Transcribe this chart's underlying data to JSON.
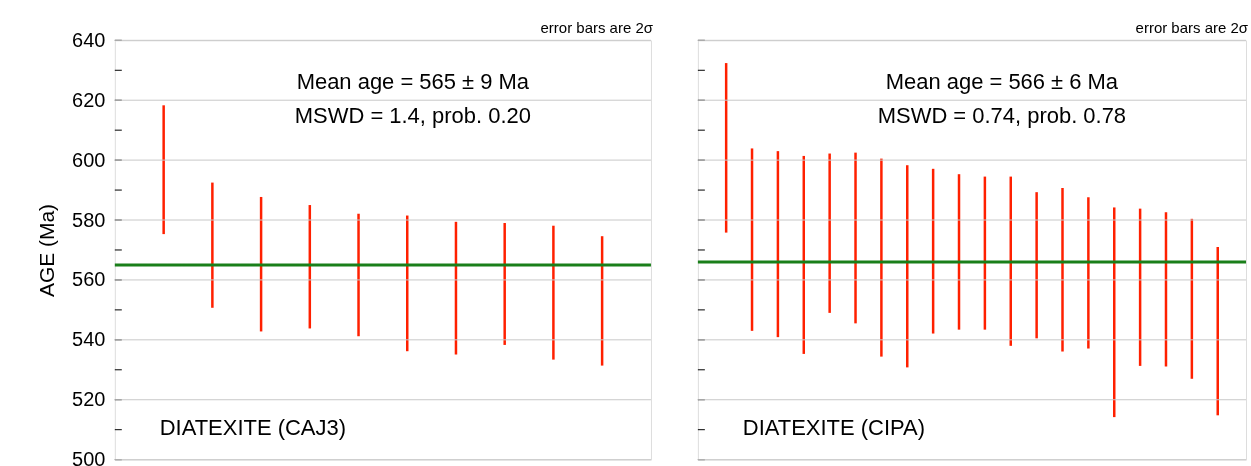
{
  "chart_data": [
    {
      "type": "bar",
      "ylabel": "AGE (Ma)",
      "categories": [
        null,
        null,
        null,
        null,
        null,
        null,
        null,
        null,
        null,
        null
      ],
      "series": [
        {
          "color": "#ff2000",
          "base": [
            575.3,
            550.7,
            542.8,
            543.8,
            541.2,
            536.2,
            535.1,
            538.3,
            533.4,
            531.4
          ],
          "values": [
            43.0,
            41.8,
            44.9,
            41.2,
            40.9,
            45.3,
            44.3,
            40.7,
            44.7,
            43.2
          ]
        }
      ],
      "ylim": [
        500,
        640
      ],
      "yticks": [
        500,
        {
          "value": 510,
          "label": null
        },
        520,
        {
          "value": 530,
          "label": null
        },
        540,
        {
          "value": 550,
          "label": null
        },
        560,
        {
          "value": 570,
          "label": null
        },
        580,
        {
          "value": 590,
          "label": null
        },
        600,
        {
          "value": 610,
          "label": null
        },
        620,
        {
          "value": 630,
          "label": null
        },
        640
      ],
      "grid": "y",
      "tick_labels": "y",
      "ref_lines": [
        {
          "axis": "y",
          "value": 565,
          "color": "#1a7f1a"
        }
      ],
      "annotations": [
        "error bars are 2σ",
        "Mean age = 565 ± 9 Ma",
        "MSWD = 1.4, prob. 0.20",
        "DIATEXITE (CAJ3)"
      ]
    },
    {
      "type": "bar",
      "categories": [
        null,
        null,
        null,
        null,
        null,
        null,
        null,
        null,
        null,
        null,
        null,
        null,
        null,
        null,
        null,
        null,
        null,
        null,
        null,
        null
      ],
      "series": [
        {
          "color": "#ff2000",
          "base": [
            575.8,
            543.0,
            540.9,
            535.3,
            549.0,
            545.5,
            534.4,
            530.8,
            542.1,
            543.4,
            543.4,
            538.0,
            540.5,
            536.1,
            537.1,
            514.2,
            531.3,
            531.1,
            527.0,
            514.8
          ],
          "values": [
            56.6,
            60.9,
            62.1,
            66.1,
            53.2,
            57.0,
            66.1,
            67.5,
            55.0,
            51.9,
            51.1,
            56.5,
            48.8,
            54.6,
            50.5,
            70.0,
            52.5,
            51.5,
            53.4,
            56.2
          ]
        }
      ],
      "ylim": [
        500,
        640
      ],
      "yticks": [
        500,
        {
          "value": 510,
          "label": null
        },
        520,
        {
          "value": 530,
          "label": null
        },
        540,
        {
          "value": 550,
          "label": null
        },
        560,
        {
          "value": 570,
          "label": null
        },
        580,
        {
          "value": 590,
          "label": null
        },
        600,
        {
          "value": 610,
          "label": null
        },
        620,
        {
          "value": 630,
          "label": null
        },
        640
      ],
      "grid": "y",
      "tick_labels": false,
      "ref_lines": [
        {
          "axis": "y",
          "value": 566,
          "color": "#1a7f1a"
        }
      ],
      "annotations": [
        "error bars are 2σ",
        "Mean age = 566 ± 6 Ma",
        "MSWD = 0.74, prob. 0.78",
        "DIATEXITE (CIPA)"
      ]
    }
  ]
}
